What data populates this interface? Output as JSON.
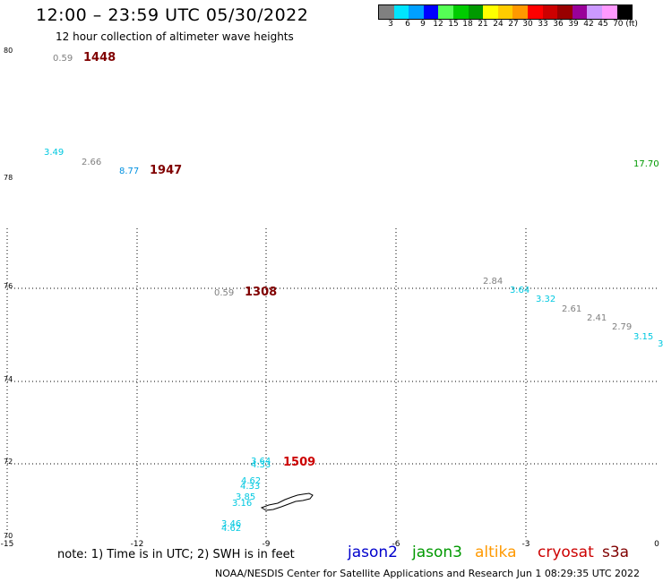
{
  "header": {
    "title": "12:00 – 23:59 UTC 05/30/2022",
    "subtitle": "12 hour collection of altimeter wave heights"
  },
  "colorbar": {
    "colors": [
      "#808080",
      "#00e5ff",
      "#00a0ff",
      "#0000ff",
      "#55ff55",
      "#00cc00",
      "#009900",
      "#ffff00",
      "#ffcc00",
      "#ff9900",
      "#ff0000",
      "#cc0000",
      "#990000",
      "#990099",
      "#cc99ff",
      "#ff99ff",
      "#000000"
    ],
    "labels": [
      "3",
      "6",
      "9",
      "12",
      "15",
      "18",
      "21",
      "24",
      "27",
      "30",
      "33",
      "36",
      "39",
      "42",
      "45",
      "70 (ft)"
    ]
  },
  "axes": {
    "lon_ticks": [
      "-15",
      "-12",
      "-9",
      "-6",
      "-3",
      "0"
    ],
    "lat_ticks": [
      "80",
      "78",
      "76",
      "74",
      "72",
      "70"
    ]
  },
  "points": [
    {
      "text": "0.59",
      "color": "#808080"
    },
    {
      "text": "1448",
      "color": "#800000"
    },
    {
      "text": "3.49",
      "color": "#00c8e0"
    },
    {
      "text": "2.66",
      "color": "#808080"
    },
    {
      "text": "8.77",
      "color": "#0090e0"
    },
    {
      "text": "1947",
      "color": "#800000"
    },
    {
      "text": "17.70",
      "color": "#009900"
    },
    {
      "text": "0.59",
      "color": "#808080"
    },
    {
      "text": "1308",
      "color": "#800000"
    },
    {
      "text": "2.84",
      "color": "#808080"
    },
    {
      "text": "3.64",
      "color": "#00c8e0"
    },
    {
      "text": "3.32",
      "color": "#00c8e0"
    },
    {
      "text": "2.61",
      "color": "#808080"
    },
    {
      "text": "2.41",
      "color": "#808080"
    },
    {
      "text": "2.79",
      "color": "#808080"
    },
    {
      "text": "3.15",
      "color": "#00c8e0"
    },
    {
      "text": "3",
      "color": "#00c8e0"
    },
    {
      "text": "3.64",
      "color": "#00c8e0"
    },
    {
      "text": "4.33",
      "color": "#00c8e0"
    },
    {
      "text": "1509",
      "color": "#cc0000"
    },
    {
      "text": "4.62",
      "color": "#00c8e0"
    },
    {
      "text": "4.33",
      "color": "#00c8e0"
    },
    {
      "text": "3.85",
      "color": "#00c8e0"
    },
    {
      "text": "3.16",
      "color": "#00c8e0"
    },
    {
      "text": "3.46",
      "color": "#00c8e0"
    },
    {
      "text": "4.62",
      "color": "#00c8e0"
    }
  ],
  "legend": {
    "note": "note:  1) Time is in UTC;  2) SWH is in feet",
    "missions": [
      {
        "name": "jason2",
        "color": "#0000cc"
      },
      {
        "name": "jason3",
        "color": "#009900"
      },
      {
        "name": "altika",
        "color": "#ff9900"
      },
      {
        "name": "cryosat",
        "color": "#cc0000"
      },
      {
        "name": "s3a",
        "color": "#800000"
      }
    ]
  },
  "footer": "NOAA/NESDIS Center for Satellite Applications and Research    Jun  1 08:29:35 UTC 2022"
}
